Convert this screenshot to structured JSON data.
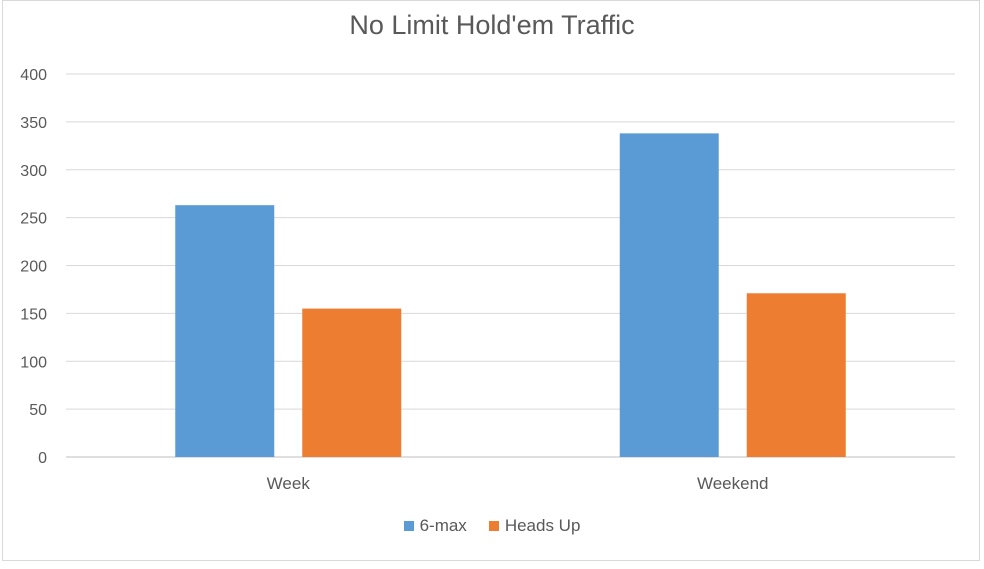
{
  "chart_data": {
    "type": "bar",
    "title": "No Limit Hold'em Traffic",
    "xlabel": "",
    "ylabel": "",
    "categories": [
      "Week",
      "Weekend"
    ],
    "series": [
      {
        "name": "6-max",
        "values": [
          263,
          338
        ],
        "color": "#5b9bd5"
      },
      {
        "name": "Heads Up",
        "values": [
          155,
          171
        ],
        "color": "#ed7d31"
      }
    ],
    "ylim": [
      0,
      400
    ],
    "yticks": [
      0,
      50,
      100,
      150,
      200,
      250,
      300,
      350,
      400
    ],
    "grid": true,
    "legend_position": "bottom"
  }
}
